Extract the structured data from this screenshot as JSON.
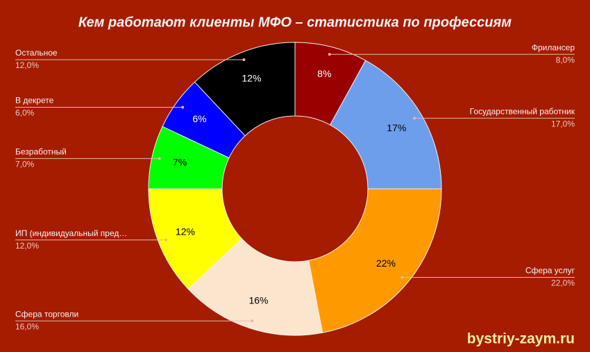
{
  "chart_data": {
    "type": "pie",
    "title": "Кем работают клиенты МФО – статистика по профессиям",
    "categories": [
      "Фрилансер",
      "Государственный работник",
      "Сфера услуг",
      "Сфера торговли",
      "ИП (индивидуальный пред…",
      "Безработный",
      "В декрете",
      "Остальное"
    ],
    "values": [
      8,
      17,
      22,
      16,
      12,
      7,
      6,
      12
    ],
    "value_labels": [
      "8%",
      "17%",
      "22%",
      "16%",
      "12%",
      "7%",
      "6%",
      "12%"
    ],
    "outer_value_labels": [
      "8,0%",
      "17,0%",
      "22,0%",
      "16,0%",
      "12,0%",
      "7,0%",
      "6,0%",
      "12,0%"
    ],
    "colors": [
      "#990000",
      "#6d9eeb",
      "#ff9900",
      "#fce5cd",
      "#ffff00",
      "#00ff00",
      "#0000ff",
      "#000000"
    ],
    "watermark": "bystriy-zaym.ru"
  }
}
